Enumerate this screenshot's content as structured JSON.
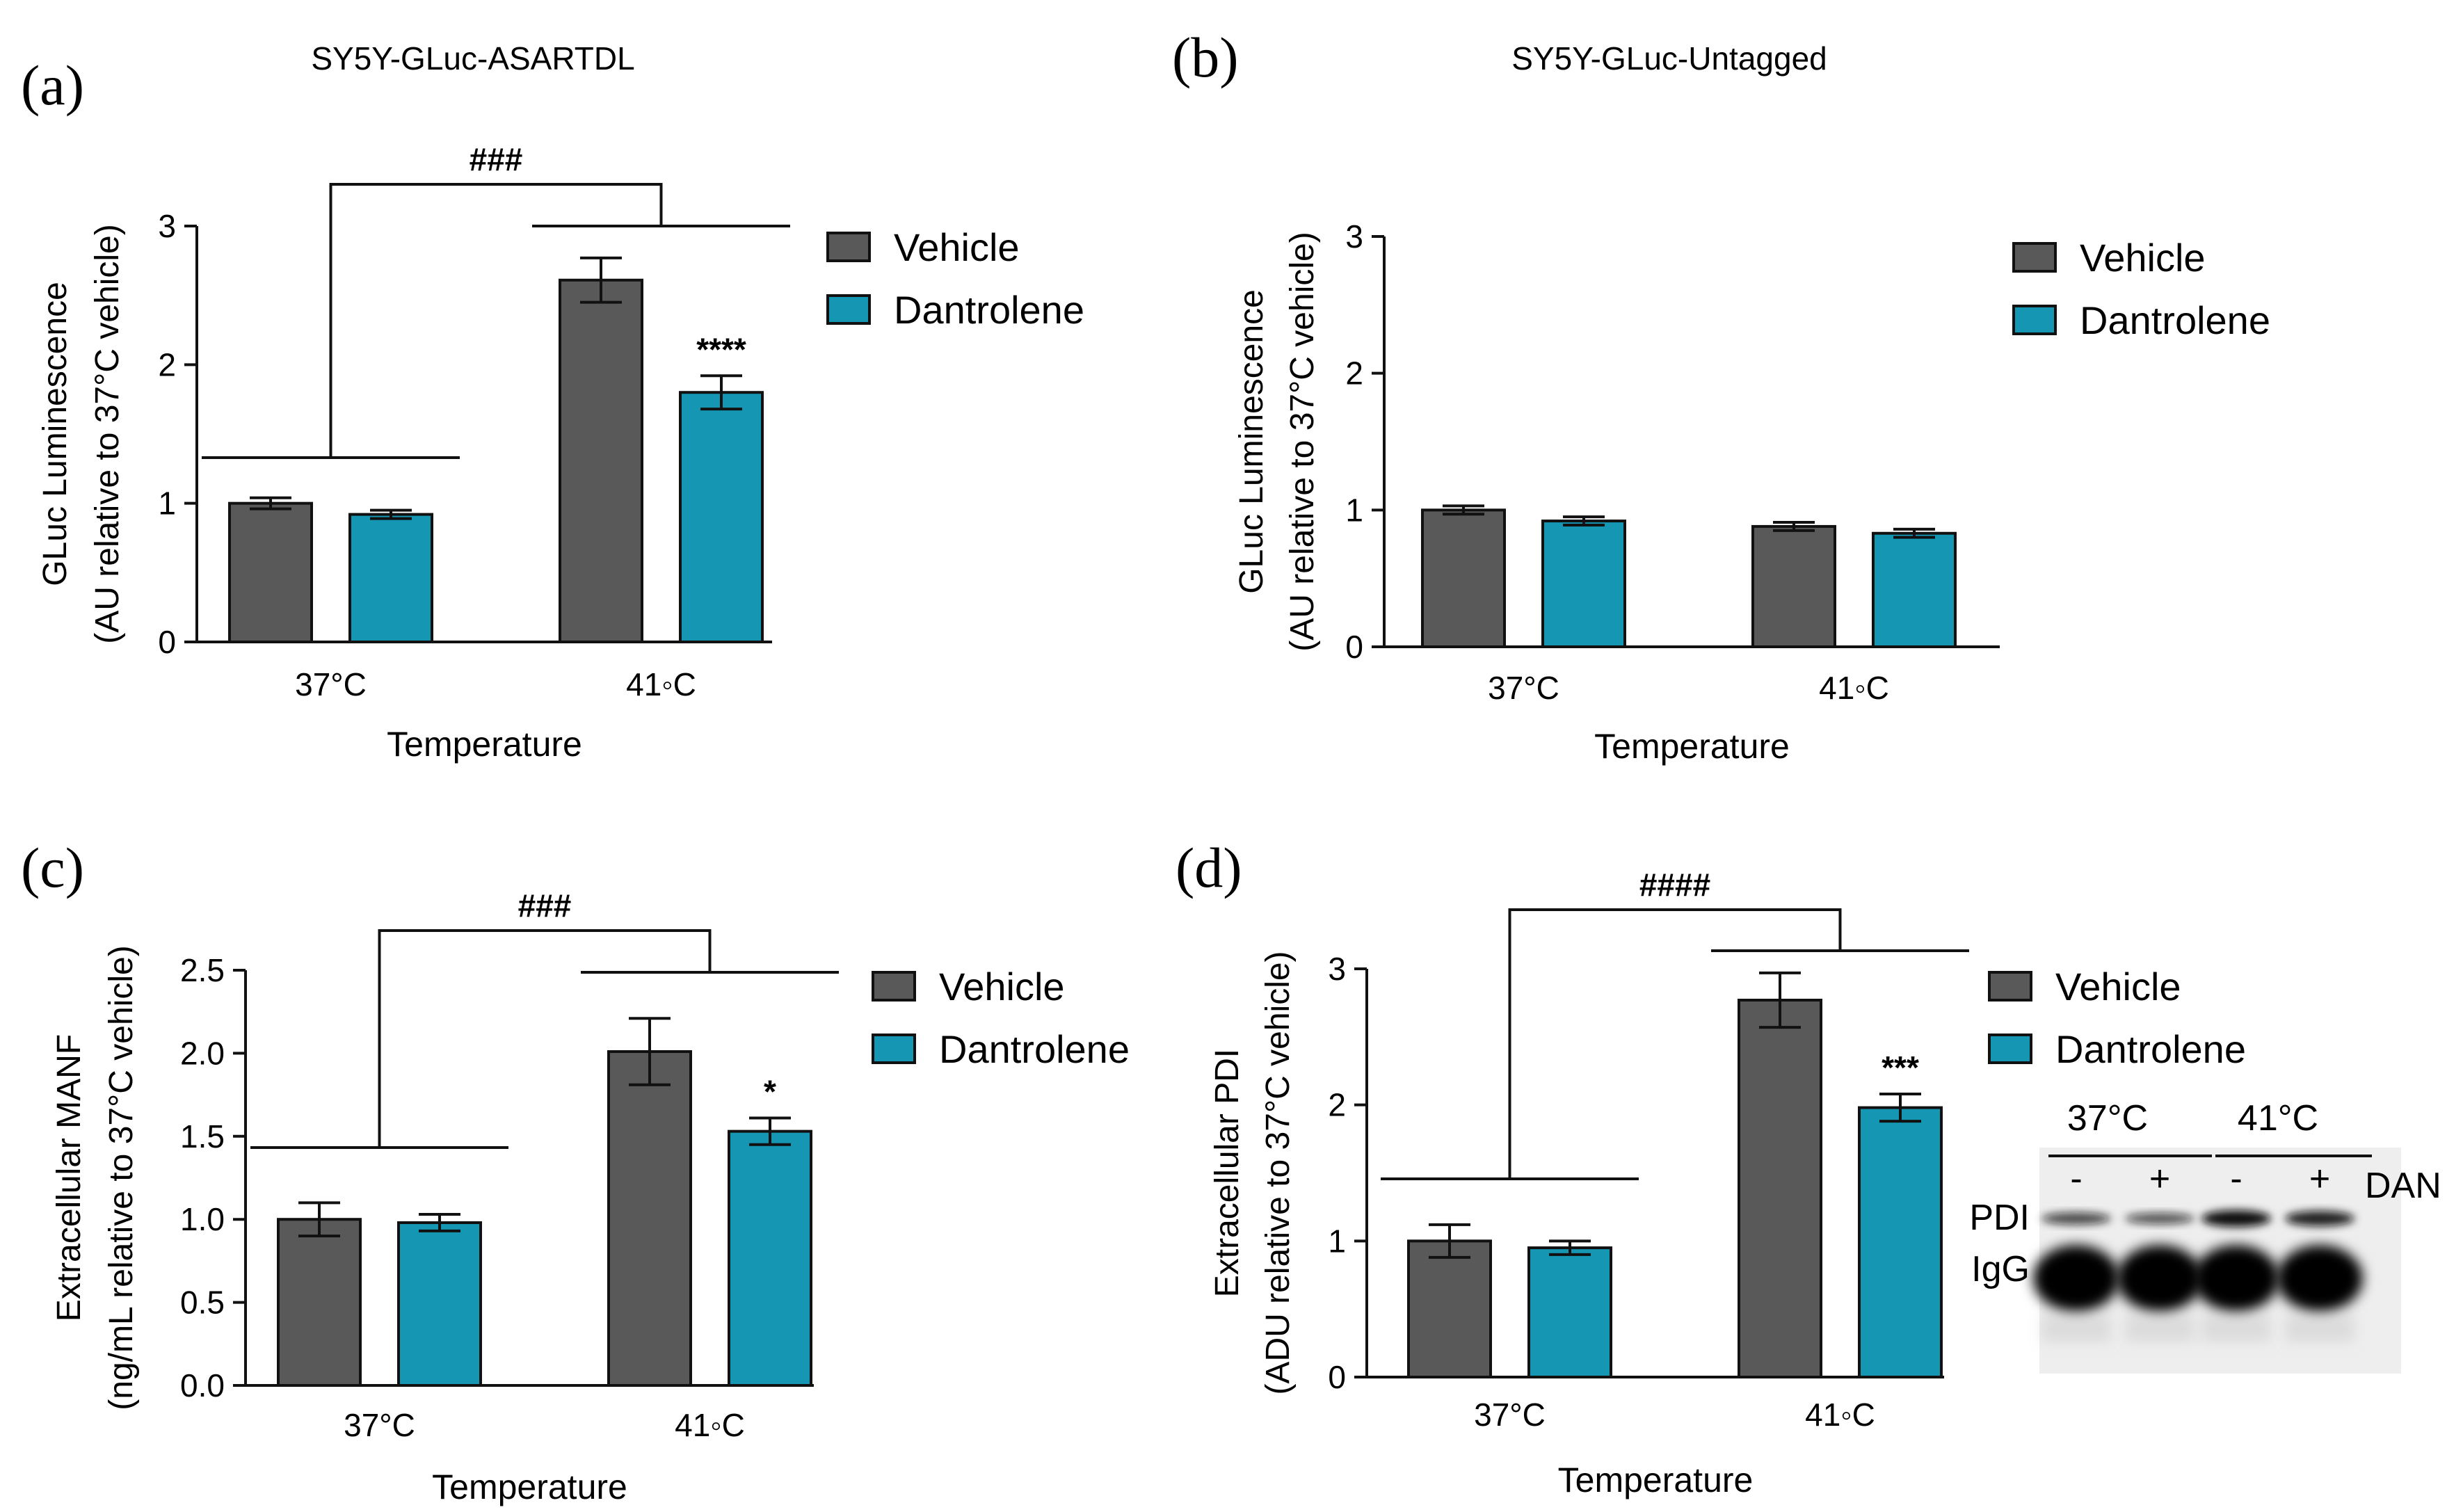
{
  "colors": {
    "vehicle": "#595959",
    "dantrolene": "#1597b3",
    "axis": "#111111"
  },
  "chart_data": [
    {
      "panel": "(a)",
      "type": "bar",
      "title": "SY5Y-GLuc-ASARTDL",
      "xlabel": "Temperature",
      "ylabel": [
        "GLuc Luminescence",
        "(AU relative to 37°C vehicle)"
      ],
      "ylim": [
        0,
        3
      ],
      "yticks": [
        "0",
        "1",
        "2",
        "3"
      ],
      "categories": [
        "37°C",
        "41◦C"
      ],
      "legend": {
        "position": "right",
        "entries": [
          "Vehicle",
          "Dantrolene"
        ]
      },
      "series": [
        {
          "name": "Vehicle",
          "values": [
            1.0,
            2.61
          ],
          "errors": [
            0.04,
            0.16
          ]
        },
        {
          "name": "Dantrolene",
          "values": [
            0.92,
            1.8
          ],
          "errors": [
            0.03,
            0.12
          ]
        }
      ],
      "significance": [
        {
          "label": "****",
          "category": 1,
          "series": 1
        }
      ],
      "bracket": {
        "label": "###"
      }
    },
    {
      "panel": "(b)",
      "type": "bar",
      "title": "SY5Y-GLuc-Untagged",
      "xlabel": "Temperature",
      "ylabel": [
        "GLuc Luminescence",
        "(AU relative to 37°C vehicle)"
      ],
      "ylim": [
        0,
        3
      ],
      "yticks": [
        "0",
        "1",
        "2",
        "3"
      ],
      "categories": [
        "37°C",
        "41◦C"
      ],
      "legend": {
        "position": "right",
        "entries": [
          "Vehicle",
          "Dantrolene"
        ]
      },
      "series": [
        {
          "name": "Vehicle",
          "values": [
            1.0,
            0.88
          ],
          "errors": [
            0.03,
            0.03
          ]
        },
        {
          "name": "Dantrolene",
          "values": [
            0.92,
            0.83
          ],
          "errors": [
            0.03,
            0.03
          ]
        }
      ],
      "significance": [],
      "bracket": null
    },
    {
      "panel": "(c)",
      "type": "bar",
      "title": "",
      "xlabel": "Temperature",
      "ylabel": [
        "Extracellular MANF",
        "(ng/mL relative to 37°C vehicle)"
      ],
      "ylim": [
        0,
        2.5
      ],
      "yticks": [
        "0.0",
        "0.5",
        "1.0",
        "1.5",
        "2.0",
        "2.5"
      ],
      "categories": [
        "37°C",
        "41◦C"
      ],
      "legend": {
        "position": "right",
        "entries": [
          "Vehicle",
          "Dantrolene"
        ]
      },
      "series": [
        {
          "name": "Vehicle",
          "values": [
            1.0,
            2.01
          ],
          "errors": [
            0.1,
            0.2
          ]
        },
        {
          "name": "Dantrolene",
          "values": [
            0.98,
            1.53
          ],
          "errors": [
            0.05,
            0.08
          ]
        }
      ],
      "significance": [
        {
          "label": "*",
          "category": 1,
          "series": 1
        }
      ],
      "bracket": {
        "label": "###"
      }
    },
    {
      "panel": "(d)",
      "type": "bar",
      "title": "",
      "xlabel": "Temperature",
      "ylabel": [
        "Extracellular PDI",
        "(ADU relative to 37°C vehicle)"
      ],
      "ylim": [
        0,
        3
      ],
      "yticks": [
        "0",
        "1",
        "2",
        "3"
      ],
      "categories": [
        "37°C",
        "41◦C"
      ],
      "legend": {
        "position": "right",
        "entries": [
          "Vehicle",
          "Dantrolene"
        ]
      },
      "series": [
        {
          "name": "Vehicle",
          "values": [
            1.0,
            2.77
          ],
          "errors": [
            0.12,
            0.2
          ]
        },
        {
          "name": "Dantrolene",
          "values": [
            0.95,
            1.98
          ],
          "errors": [
            0.05,
            0.1
          ]
        }
      ],
      "significance": [
        {
          "label": "***",
          "category": 1,
          "series": 1
        }
      ],
      "bracket": {
        "label": "####"
      },
      "blot": {
        "temperatures": [
          "37°C",
          "41°C"
        ],
        "lanes": [
          "-",
          "+",
          "-",
          "+"
        ],
        "treatment_label": "DAN",
        "band_labels": [
          "PDI",
          "IgG"
        ],
        "pdi_intensity": [
          0.55,
          0.45,
          1.0,
          0.85
        ]
      }
    }
  ]
}
